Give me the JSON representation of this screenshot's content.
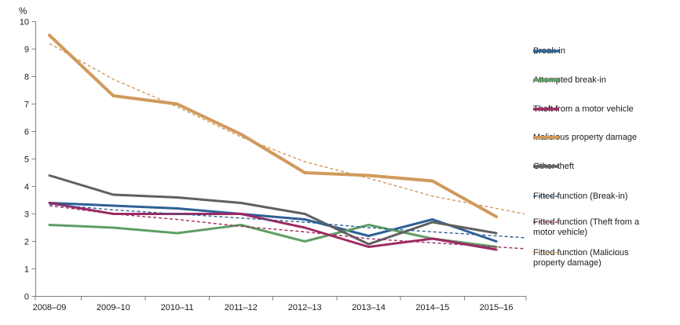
{
  "chart_data": {
    "type": "line",
    "title": "",
    "ylabel": "%",
    "xlabel": "",
    "categories": [
      "2008–09",
      "2009–10",
      "2010–11",
      "2011–12",
      "2012–13",
      "2013–14",
      "2014–15",
      "2015–16"
    ],
    "ylim": [
      0,
      10
    ],
    "yticks": [
      0,
      1,
      2,
      3,
      4,
      5,
      6,
      7,
      8,
      9,
      10
    ],
    "grid": false,
    "legend_position": "right",
    "axis_color": "#808080",
    "text_color": "#1a1a1a",
    "series": [
      {
        "name": "Break-in",
        "style": "solid",
        "color": "#2e6096",
        "values": [
          3.4,
          3.3,
          3.2,
          3.0,
          2.8,
          2.2,
          2.8,
          2.0
        ]
      },
      {
        "name": "Attempted break-in",
        "style": "solid",
        "color": "#5f9e64",
        "values": [
          2.6,
          2.5,
          2.3,
          2.6,
          2.0,
          2.6,
          2.1,
          1.8
        ]
      },
      {
        "name": "Theft from a motor vehicle",
        "style": "solid",
        "color": "#9e2a63",
        "values": [
          3.4,
          3.0,
          3.0,
          3.0,
          2.5,
          1.8,
          2.1,
          1.7
        ]
      },
      {
        "name": "Malicious property damage",
        "style": "solid",
        "color": "#d09a5c",
        "values": [
          9.5,
          7.3,
          7.0,
          5.9,
          4.5,
          4.4,
          4.2,
          2.9
        ]
      },
      {
        "name": "Other theft",
        "style": "solid",
        "color": "#606060",
        "values": [
          4.4,
          3.7,
          3.6,
          3.4,
          3.0,
          1.9,
          2.7,
          2.3
        ]
      },
      {
        "name": "Fitted function (Break-in)",
        "style": "dashed",
        "color": "#2e6096",
        "values": [
          3.35,
          3.15,
          3.0,
          2.85,
          2.7,
          2.5,
          2.35,
          2.2
        ]
      },
      {
        "name": "Fitted function (Theft from a motor vehicle)",
        "style": "dashed",
        "color": "#9e2a63",
        "values": [
          3.3,
          3.0,
          2.8,
          2.55,
          2.35,
          2.1,
          1.95,
          1.8
        ]
      },
      {
        "name": "Fitted function (Malicious property damage)",
        "style": "dashed",
        "color": "#d09a5c",
        "values": [
          9.2,
          7.9,
          6.9,
          5.8,
          4.9,
          4.3,
          3.65,
          3.2
        ]
      }
    ]
  }
}
